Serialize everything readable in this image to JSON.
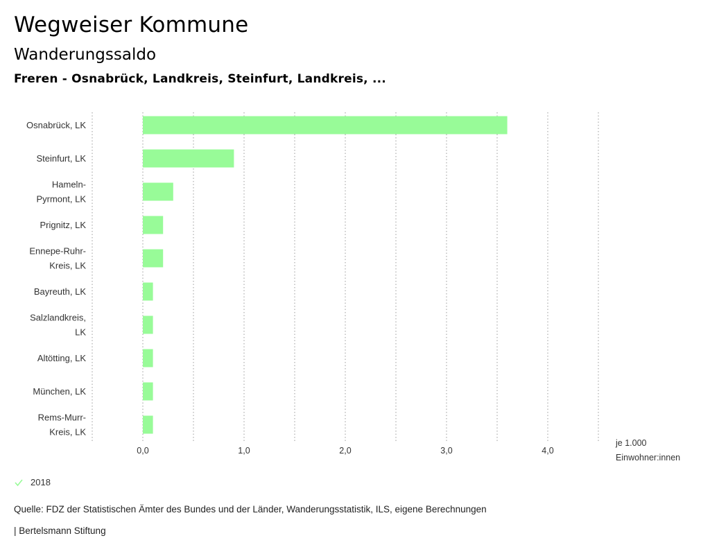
{
  "header": {
    "title": "Wegweiser Kommune",
    "subtitle": "Wanderungssaldo",
    "region": "Freren - Osnabrück, Landkreis, Steinfurt, Landkreis, ..."
  },
  "chart_data": {
    "type": "bar",
    "orientation": "horizontal",
    "categories": [
      [
        "Osnabrück, LK"
      ],
      [
        "Steinfurt, LK"
      ],
      [
        "Hameln-",
        "Pyrmont, LK"
      ],
      [
        "Prignitz, LK"
      ],
      [
        "Ennepe-Ruhr-",
        "Kreis, LK"
      ],
      [
        "Bayreuth, LK"
      ],
      [
        "Salzlandkreis,",
        "LK"
      ],
      [
        "Altötting, LK"
      ],
      [
        "München, LK"
      ],
      [
        "Rems-Murr-",
        "Kreis, LK"
      ]
    ],
    "series": [
      {
        "name": "2018",
        "color": "#98fb98",
        "values": [
          3.6,
          0.9,
          0.3,
          0.2,
          0.2,
          0.1,
          0.1,
          0.1,
          0.1,
          0.1
        ]
      }
    ],
    "xlim": [
      -0.5,
      4.5
    ],
    "xticks": [
      {
        "value": 0,
        "label": "0,0"
      },
      {
        "value": 1,
        "label": "1,0"
      },
      {
        "value": 2,
        "label": "2,0"
      },
      {
        "value": 3,
        "label": "3,0"
      },
      {
        "value": 4,
        "label": "4,0"
      }
    ],
    "gridlines": [
      -0.5,
      0,
      0.5,
      1,
      1.5,
      2,
      2.5,
      3,
      3.5,
      4,
      4.5
    ],
    "unit_label": [
      "je 1.000",
      "Einwohner:innen"
    ],
    "grid": true,
    "legend_position": "bottom-left"
  },
  "footer": {
    "source": "Quelle: FDZ der Statistischen Ämter des Bundes und der Länder, Wanderungsstatistik, ILS, eigene Berechnungen",
    "organization": "| Bertelsmann Stiftung"
  }
}
